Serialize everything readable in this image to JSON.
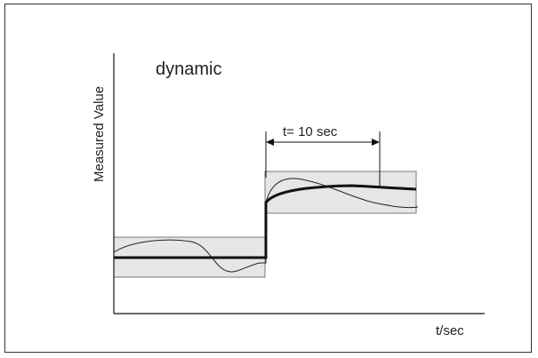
{
  "diagram": {
    "title": "dynamic",
    "y_axis_label": "Measured Value",
    "x_axis_label": "t/sec",
    "time_annotation": "t= 10 sec"
  },
  "colors": {
    "band_fill": "#e6e6e6",
    "band_stroke": "#7a7a7a",
    "axis": "#111111",
    "line": "#111111"
  }
}
